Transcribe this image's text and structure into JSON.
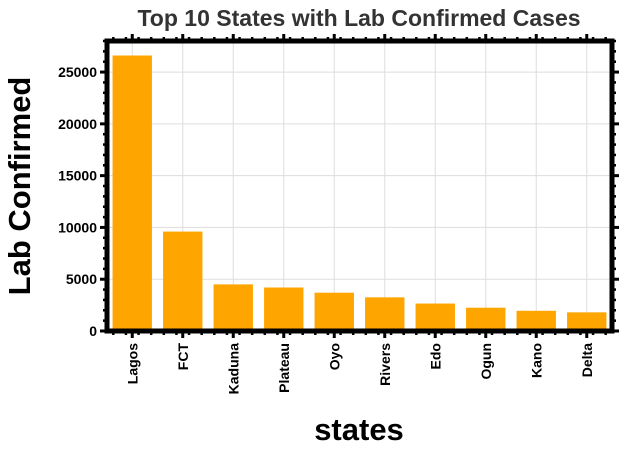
{
  "chart_data": {
    "type": "bar",
    "title": "Top 10 States with Lab Confirmed Cases",
    "xlabel": "states",
    "ylabel": "Lab Confirmed",
    "categories": [
      "Lagos",
      "FCT",
      "Kaduna",
      "Plateau",
      "Oyo",
      "Rivers",
      "Edo",
      "Ogun",
      "Kano",
      "Delta"
    ],
    "values": [
      26600,
      9600,
      4500,
      4200,
      3700,
      3250,
      2650,
      2250,
      1950,
      1800
    ],
    "ylim": [
      0,
      28000
    ],
    "yticks": [
      0,
      5000,
      10000,
      15000,
      20000,
      25000
    ],
    "grid": true,
    "legend": "none",
    "colors": {
      "bar": "#ffa500",
      "frame": "#000000",
      "grid": "#dddddd",
      "title": "#333333"
    }
  }
}
